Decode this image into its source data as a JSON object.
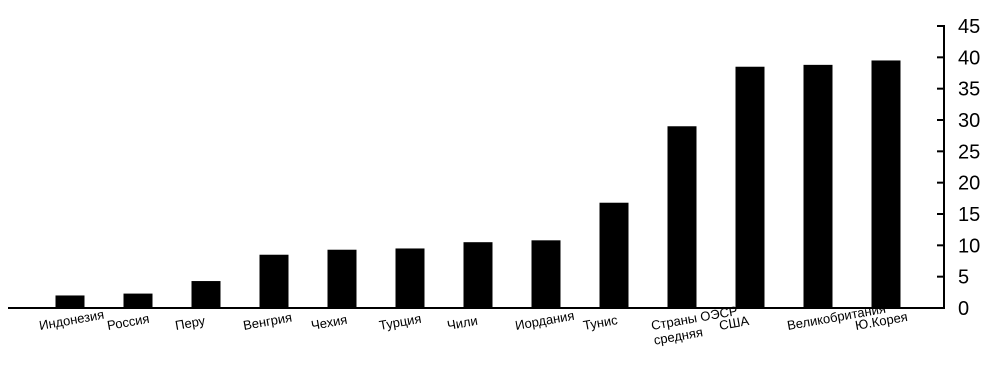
{
  "chart_data": {
    "type": "bar",
    "categories": [
      "Индонезия",
      "Россия",
      "Перу",
      "Венгрия",
      "Чехия",
      "Турция",
      "Чили",
      "Иордания",
      "Тунис",
      "Страны ОЭСР\nсредняя",
      "США",
      "Великобритания",
      "Ю.Корея"
    ],
    "values": [
      2.0,
      2.3,
      4.3,
      8.5,
      9.3,
      9.5,
      10.5,
      10.8,
      16.8,
      29.0,
      38.5,
      38.8,
      39.5
    ],
    "title": "",
    "xlabel": "",
    "ylabel": "",
    "ylim": [
      0,
      45
    ],
    "yticks": [
      0,
      5,
      10,
      15,
      20,
      25,
      30,
      35,
      40,
      45
    ],
    "yaxis_position": "right",
    "grid": false,
    "legend": "none",
    "bar_color": "#000000"
  }
}
